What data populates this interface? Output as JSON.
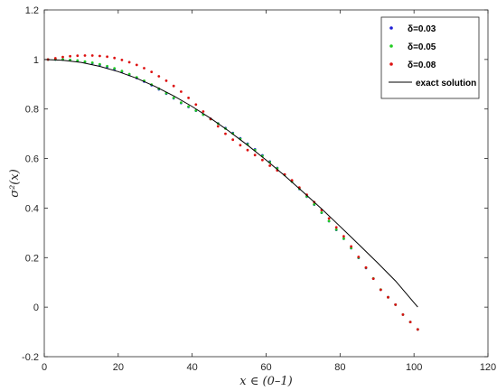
{
  "chart_data": {
    "type": "scatter",
    "xlabel": "x ∈ (0–1)",
    "ylabel": "σ²(x)",
    "xlim": [
      0,
      120
    ],
    "ylim": [
      -0.2,
      1.2
    ],
    "xticks": [
      0,
      20,
      40,
      60,
      80,
      100,
      120
    ],
    "yticks": [
      -0.2,
      0,
      0.2,
      0.4,
      0.6,
      0.8,
      1,
      1.2
    ],
    "xtick_labels": [
      "0",
      "20",
      "40",
      "60",
      "80",
      "100",
      "120"
    ],
    "ytick_labels": [
      "-0.2",
      "0",
      "0.2",
      "0.4",
      "0.6",
      "0.8",
      "1",
      "1.2"
    ],
    "grid": false,
    "legend_position": "top-right",
    "series": [
      {
        "name": "δ=0.03",
        "style": "dots",
        "color": "#1f1fd6",
        "x": [
          1,
          3,
          5,
          7,
          9,
          11,
          13,
          15,
          17,
          19,
          21,
          23,
          25,
          27,
          29,
          31,
          33,
          35,
          37,
          39,
          41,
          43,
          45,
          47,
          49,
          51,
          53,
          55,
          57,
          59,
          61,
          63,
          65,
          67,
          69,
          71,
          73,
          75,
          77,
          79,
          81,
          83,
          85,
          87,
          89,
          91,
          93,
          95,
          97,
          99,
          101
        ],
        "y": [
          1.0,
          1.0,
          1.0,
          0.998,
          0.995,
          0.99,
          0.985,
          0.978,
          0.97,
          0.961,
          0.95,
          0.938,
          0.925,
          0.911,
          0.896,
          0.879,
          0.862,
          0.843,
          0.824,
          0.808,
          0.793,
          0.777,
          0.76,
          0.742,
          0.723,
          0.703,
          0.682,
          0.66,
          0.637,
          0.613,
          0.588,
          0.562,
          0.535,
          0.507,
          0.477,
          0.446,
          0.414,
          0.381,
          0.347,
          0.312,
          0.276,
          0.238,
          0.199,
          0.158,
          0.115,
          0.07,
          0.04,
          0.01,
          -0.03,
          -0.06,
          -0.09
        ]
      },
      {
        "name": "δ=0.05",
        "style": "dots",
        "color": "#22cc22",
        "x": [
          1,
          3,
          5,
          7,
          9,
          11,
          13,
          15,
          17,
          19,
          21,
          23,
          25,
          27,
          29,
          31,
          33,
          35,
          37,
          39,
          41,
          43,
          45,
          47,
          49,
          51,
          53,
          55,
          57,
          59,
          61,
          63,
          65,
          67,
          69,
          71,
          73,
          75,
          77,
          79,
          81,
          83,
          85,
          87,
          89,
          91,
          93,
          95,
          97,
          99,
          101
        ],
        "y": [
          1.0,
          1.0,
          1.0,
          0.998,
          0.996,
          0.992,
          0.987,
          0.981,
          0.973,
          0.964,
          0.953,
          0.941,
          0.928,
          0.914,
          0.899,
          0.882,
          0.864,
          0.845,
          0.826,
          0.81,
          0.794,
          0.777,
          0.759,
          0.741,
          0.721,
          0.701,
          0.679,
          0.657,
          0.634,
          0.61,
          0.585,
          0.56,
          0.534,
          0.507,
          0.478,
          0.447,
          0.415,
          0.382,
          0.348,
          0.313,
          0.277,
          0.239,
          0.2,
          0.159,
          0.116,
          0.071,
          0.04,
          0.01,
          -0.03,
          -0.06,
          -0.09
        ]
      },
      {
        "name": "δ=0.08",
        "style": "dots",
        "color": "#dd1111",
        "x": [
          1,
          3,
          5,
          7,
          9,
          11,
          13,
          15,
          17,
          19,
          21,
          23,
          25,
          27,
          29,
          31,
          33,
          35,
          37,
          39,
          41,
          43,
          45,
          47,
          49,
          51,
          53,
          55,
          57,
          59,
          61,
          63,
          65,
          67,
          69,
          71,
          73,
          75,
          77,
          79,
          81,
          83,
          85,
          87,
          89,
          91,
          93,
          95,
          97,
          99,
          101
        ],
        "y": [
          1.0,
          1.005,
          1.01,
          1.013,
          1.015,
          1.016,
          1.016,
          1.014,
          1.011,
          1.006,
          0.998,
          0.989,
          0.978,
          0.965,
          0.95,
          0.932,
          0.914,
          0.893,
          0.87,
          0.845,
          0.818,
          0.79,
          0.76,
          0.73,
          0.7,
          0.676,
          0.654,
          0.634,
          0.614,
          0.594,
          0.571,
          0.552,
          0.536,
          0.512,
          0.483,
          0.454,
          0.424,
          0.392,
          0.358,
          0.322,
          0.286,
          0.245,
          0.203,
          0.16,
          0.115,
          0.07,
          0.04,
          0.01,
          -0.03,
          -0.06,
          -0.09
        ]
      },
      {
        "name": "exact solution",
        "style": "line",
        "color": "#000000",
        "x": [
          0,
          5,
          10,
          15,
          20,
          25,
          30,
          35,
          40,
          45,
          50,
          55,
          60,
          65,
          70,
          75,
          80,
          85,
          90,
          95,
          101
        ],
        "y": [
          1.0,
          0.997,
          0.988,
          0.972,
          0.951,
          0.924,
          0.891,
          0.853,
          0.81,
          0.762,
          0.71,
          0.654,
          0.594,
          0.531,
          0.465,
          0.397,
          0.326,
          0.254,
          0.181,
          0.106,
          0.0
        ]
      }
    ]
  }
}
